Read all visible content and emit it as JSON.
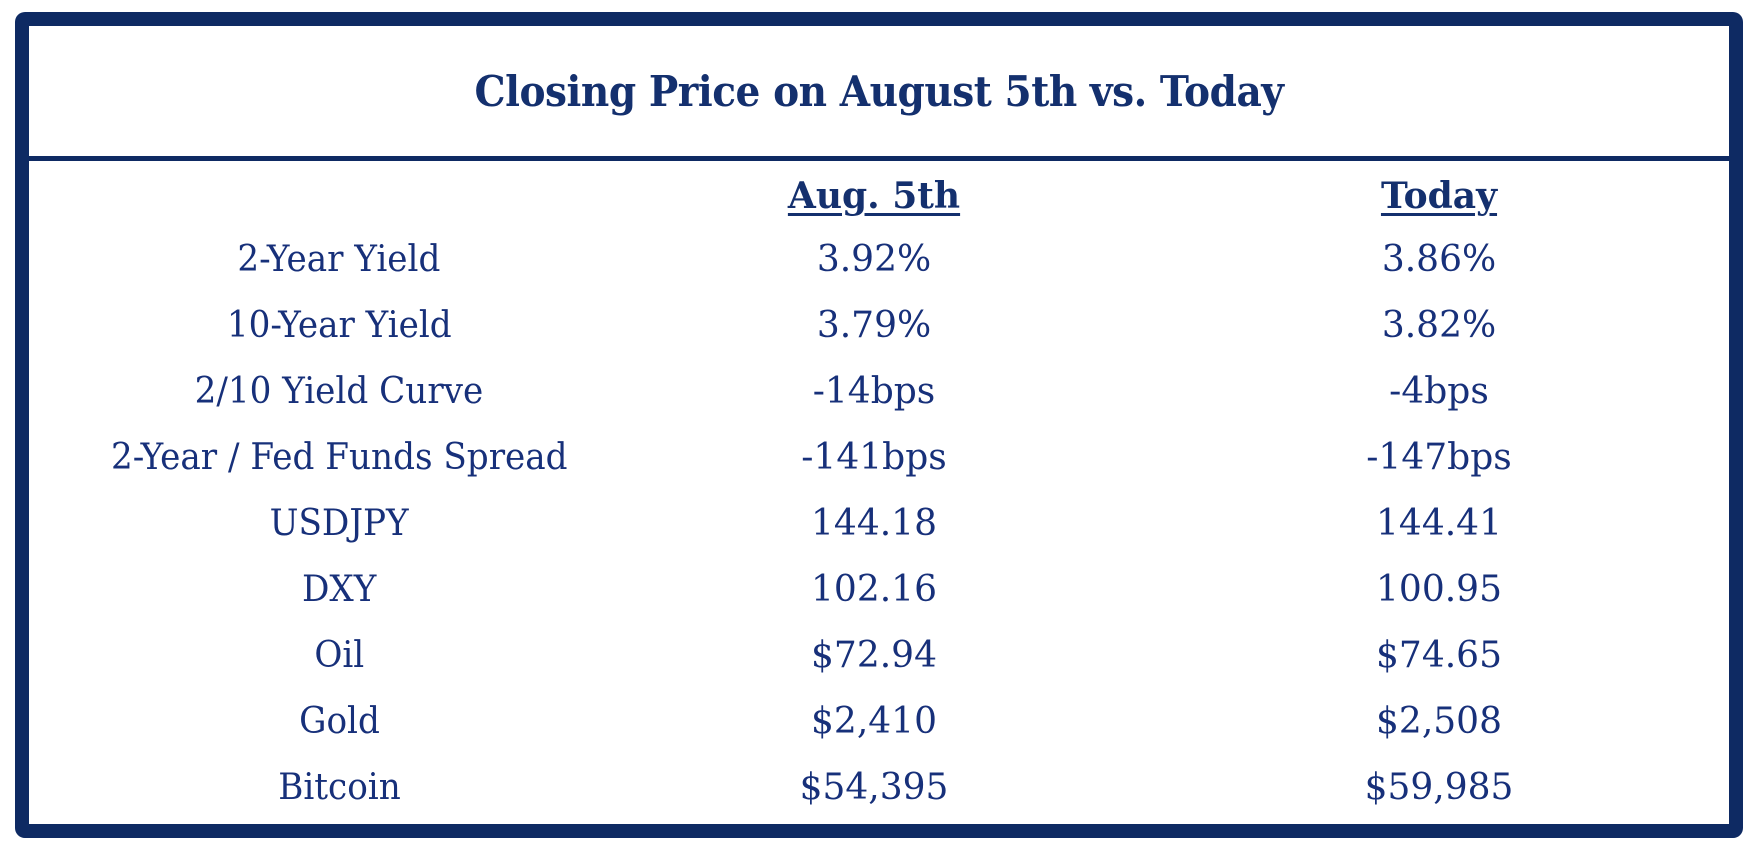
{
  "chart_data": {
    "type": "table",
    "title": "Closing Price on August 5th vs. Today",
    "columns": [
      "",
      "Aug. 5th",
      "Today"
    ],
    "rows": [
      {
        "label": "2-Year Yield",
        "aug5": "3.92%",
        "today": "3.86%"
      },
      {
        "label": "10-Year Yield",
        "aug5": "3.79%",
        "today": "3.82%"
      },
      {
        "label": "2/10 Yield Curve",
        "aug5": "-14bps",
        "today": "-4bps"
      },
      {
        "label": "2-Year / Fed Funds Spread",
        "aug5": "-141bps",
        "today": "-147bps"
      },
      {
        "label": "USDJPY",
        "aug5": "144.18",
        "today": "144.41"
      },
      {
        "label": "DXY",
        "aug5": "102.16",
        "today": "100.95"
      },
      {
        "label": "Oil",
        "aug5": "$72.94",
        "today": "$74.65"
      },
      {
        "label": "Gold",
        "aug5": "$2,410",
        "today": "$2,508"
      },
      {
        "label": "Bitcoin",
        "aug5": "$54,395",
        "today": "$59,985"
      }
    ]
  },
  "colors": {
    "border": "#0e2a63",
    "text": "#17307a",
    "background": "#ffffff"
  }
}
